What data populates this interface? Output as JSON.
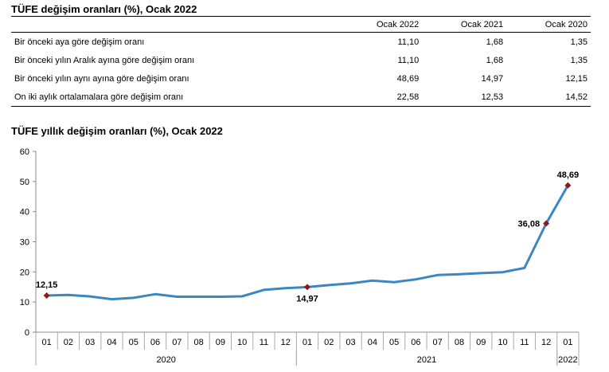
{
  "table": {
    "title": "TÜFE değişim oranları (%), Ocak 2022",
    "headers": [
      "Ocak 2022",
      "Ocak 2021",
      "Ocak 2020"
    ],
    "rows": [
      {
        "label": "Bir önceki aya göre değişim oranı",
        "values": [
          "11,10",
          "1,68",
          "1,35"
        ]
      },
      {
        "label": "Bir önceki yılın Aralık ayına göre değişim oranı",
        "values": [
          "11,10",
          "1,68",
          "1,35"
        ]
      },
      {
        "label": "Bir önceki yılın aynı ayına göre değişim oranı",
        "values": [
          "48,69",
          "14,97",
          "12,15"
        ]
      },
      {
        "label": "On iki aylık ortalamalara göre değişim oranı",
        "values": [
          "22,58",
          "12,53",
          "14,52"
        ]
      }
    ]
  },
  "chart_data": {
    "type": "line",
    "title": "TÜFE yıllık değişim oranları (%), Ocak 2022",
    "x_months": [
      "01",
      "02",
      "03",
      "04",
      "05",
      "06",
      "07",
      "08",
      "09",
      "10",
      "11",
      "12",
      "01",
      "02",
      "03",
      "04",
      "05",
      "06",
      "07",
      "08",
      "09",
      "10",
      "11",
      "12",
      "01"
    ],
    "x_years": [
      {
        "label": "2020",
        "start": 0,
        "end": 11
      },
      {
        "label": "2021",
        "start": 12,
        "end": 23
      },
      {
        "label": "2022",
        "start": 24,
        "end": 24
      }
    ],
    "ylim": [
      0,
      60
    ],
    "yticks": [
      0,
      10,
      20,
      30,
      40,
      50,
      60
    ],
    "grid": false,
    "series": [
      {
        "color": "#3a87c2",
        "values": [
          12.15,
          12.37,
          11.86,
          10.94,
          11.39,
          12.62,
          11.76,
          11.77,
          11.75,
          11.89,
          14.03,
          14.6,
          14.97,
          15.61,
          16.19,
          17.14,
          16.59,
          17.53,
          18.95,
          19.25,
          19.58,
          19.89,
          21.31,
          36.08,
          48.69
        ]
      }
    ],
    "marker_color": "#8b1a1a",
    "annotations": [
      {
        "index": 0,
        "text": "12,15",
        "pos": "above"
      },
      {
        "index": 12,
        "text": "14,97",
        "pos": "below"
      },
      {
        "index": 23,
        "text": "36,08",
        "pos": "left"
      },
      {
        "index": 24,
        "text": "48,69",
        "pos": "above"
      }
    ]
  }
}
